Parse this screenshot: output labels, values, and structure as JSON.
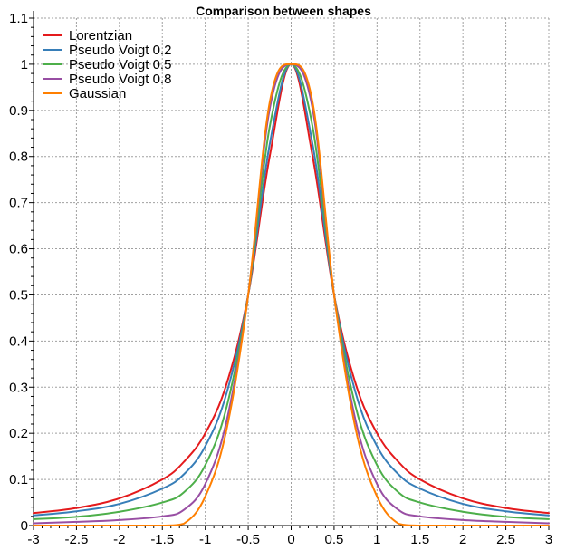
{
  "chart_data": {
    "type": "line",
    "title": "Comparison between shapes",
    "xlabel": "",
    "ylabel": "",
    "xlim": [
      -3,
      3
    ],
    "ylim": [
      0,
      1.1
    ],
    "x_ticks": [
      -3,
      -2.5,
      -2,
      -1.5,
      -1,
      -0.5,
      0,
      0.5,
      1,
      1.5,
      2,
      2.5,
      3
    ],
    "y_ticks": [
      0,
      0.1,
      0.2,
      0.3,
      0.4,
      0.5,
      0.6,
      0.7,
      0.8,
      0.9,
      1,
      1.1
    ],
    "grid": true,
    "legend_position": "top-left",
    "x": [
      -3,
      -2.5,
      -2,
      -1.5,
      -1.25,
      -1,
      -0.75,
      -0.5,
      -0.25,
      0,
      0.25,
      0.5,
      0.75,
      1,
      1.25,
      1.5,
      2,
      2.5,
      3
    ],
    "series": [
      {
        "name": "Lorentzian",
        "color": "#e41a1c",
        "values": [
          0.027,
          0.038,
          0.059,
          0.1,
          0.138,
          0.2,
          0.308,
          0.5,
          0.8,
          1,
          0.8,
          0.5,
          0.308,
          0.2,
          0.138,
          0.1,
          0.059,
          0.038,
          0.027
        ]
      },
      {
        "name": "Pseudo Voigt 0.2",
        "color": "#377eb8",
        "values": [
          0.022,
          0.031,
          0.047,
          0.08,
          0.111,
          0.172,
          0.288,
          0.5,
          0.826,
          1,
          0.826,
          0.5,
          0.288,
          0.172,
          0.111,
          0.08,
          0.047,
          0.031,
          0.022
        ]
      },
      {
        "name": "Pseudo Voigt 0.5",
        "color": "#4daf4a",
        "values": [
          0.014,
          0.019,
          0.03,
          0.05,
          0.072,
          0.131,
          0.258,
          0.5,
          0.864,
          1,
          0.864,
          0.5,
          0.258,
          0.131,
          0.072,
          0.05,
          0.03,
          0.019,
          0.014
        ]
      },
      {
        "name": "Pseudo Voigt 0.8",
        "color": "#984ea3",
        "values": [
          0.005,
          0.008,
          0.012,
          0.02,
          0.034,
          0.09,
          0.228,
          0.5,
          0.903,
          1,
          0.903,
          0.5,
          0.228,
          0.09,
          0.034,
          0.02,
          0.012,
          0.008,
          0.005
        ]
      },
      {
        "name": "Gaussian",
        "color": "#ff7f00",
        "values": [
          0,
          0,
          0,
          0,
          0.004,
          0.063,
          0.21,
          0.5,
          0.917,
          1,
          0.917,
          0.5,
          0.21,
          0.063,
          0.004,
          0,
          0,
          0,
          0
        ]
      }
    ]
  }
}
